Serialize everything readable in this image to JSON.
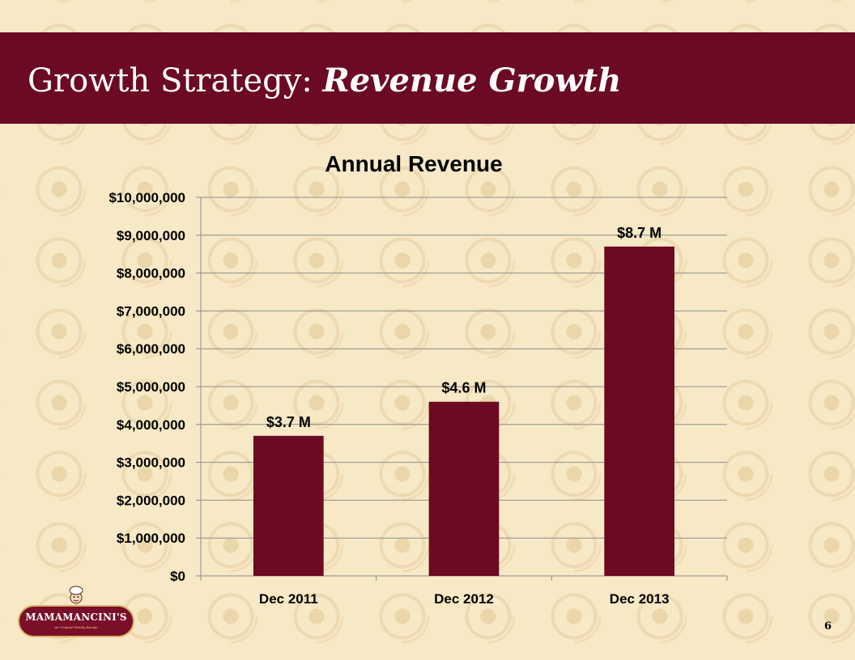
{
  "slide": {
    "title_plain": "Growth Strategy: ",
    "title_emphasis": "Revenue Growth",
    "page_number": "6"
  },
  "logo": {
    "name": "MAMAMANCINI'S",
    "tagline": "An Original Family Recipe"
  },
  "colors": {
    "header": "#6b0a22",
    "bar": "#6b0a22",
    "gridline": "#8c8c8c"
  },
  "chart_data": {
    "type": "bar",
    "title": "Annual Revenue",
    "xlabel": "",
    "ylabel": "",
    "categories": [
      "Dec 2011",
      "Dec 2012",
      "Dec 2013"
    ],
    "values": [
      3700000,
      4600000,
      8700000
    ],
    "data_labels": [
      "$3.7 M",
      "$4.6 M",
      "$8.7 M"
    ],
    "ylim": [
      0,
      10000000
    ],
    "yticks": [
      0,
      1000000,
      2000000,
      3000000,
      4000000,
      5000000,
      6000000,
      7000000,
      8000000,
      9000000,
      10000000
    ],
    "ytick_labels": [
      "$0",
      "$1,000,000",
      "$2,000,000",
      "$3,000,000",
      "$4,000,000",
      "$5,000,000",
      "$6,000,000",
      "$7,000,000",
      "$8,000,000",
      "$9,000,000",
      "$10,000,000"
    ],
    "grid": true,
    "legend": "none"
  }
}
